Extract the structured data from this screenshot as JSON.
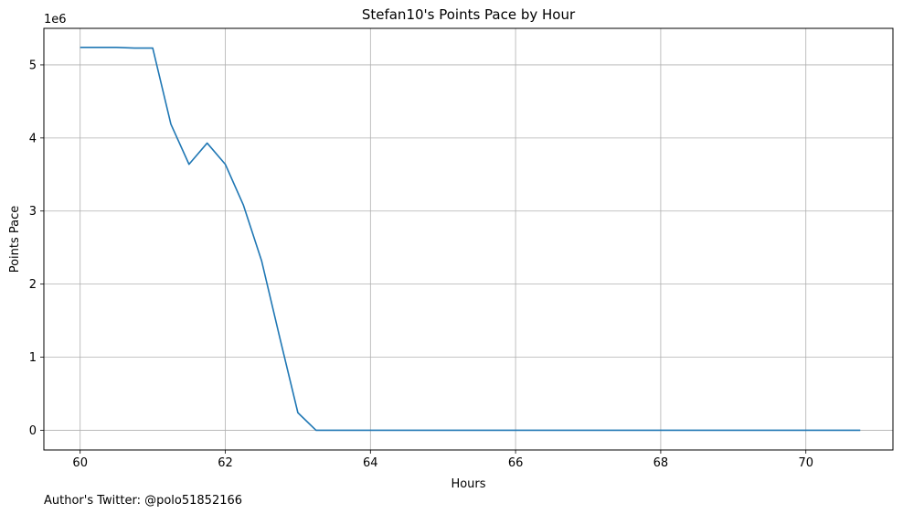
{
  "chart_data": {
    "type": "line",
    "title": "Stefan10's Points Pace by Hour",
    "xlabel": "Hours",
    "ylabel": "Points Pace",
    "y_offset_label": "1e6",
    "xlim": [
      59.5,
      71.2
    ],
    "ylim": [
      -270000,
      5500000
    ],
    "x_ticks": [
      60,
      62,
      64,
      66,
      68,
      70
    ],
    "x_tick_labels": [
      "60",
      "62",
      "64",
      "66",
      "68",
      "70"
    ],
    "y_ticks": [
      0,
      1000000,
      2000000,
      3000000,
      4000000,
      5000000
    ],
    "y_tick_labels": [
      "0",
      "1",
      "2",
      "3",
      "4",
      "5"
    ],
    "grid": true,
    "color": "#1f77b4",
    "series": [
      {
        "x": [
          60,
          60.25,
          60.5,
          60.75,
          61,
          61.25,
          61.5,
          61.75,
          62,
          62.25,
          62.5,
          62.75,
          63,
          63.25,
          63.5,
          63.75,
          64,
          64.25,
          64.5,
          64.75,
          65,
          65.25,
          65.5,
          65.75,
          66,
          66.25,
          66.5,
          66.75,
          67,
          67.25,
          67.5,
          67.75,
          68,
          68.25,
          68.5,
          68.75,
          69,
          69.25,
          69.5,
          69.75,
          70,
          70.25,
          70.5,
          70.75
        ],
        "y": [
          5240000,
          5240000,
          5240000,
          5230000,
          5230000,
          4190000,
          3640000,
          3930000,
          3640000,
          3080000,
          2320000,
          1270000,
          240000,
          0,
          0,
          0,
          0,
          0,
          0,
          0,
          0,
          0,
          0,
          0,
          0,
          0,
          0,
          0,
          0,
          0,
          0,
          0,
          0,
          0,
          0,
          0,
          0,
          0,
          0,
          0,
          0,
          0,
          0,
          0
        ]
      }
    ]
  },
  "footer": {
    "author_text": "Author's Twitter: @polo51852166"
  }
}
